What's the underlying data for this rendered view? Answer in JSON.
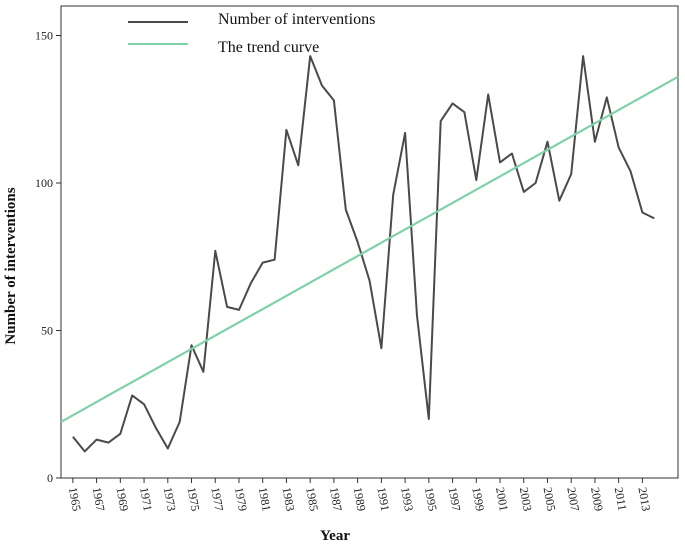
{
  "chart_data": {
    "type": "line",
    "xlabel": "Year",
    "ylabel": "Number of interventions",
    "xlim": [
      1964,
      2016
    ],
    "ylim": [
      0,
      160
    ],
    "yticks": [
      0,
      50,
      100,
      150
    ],
    "xticks": [
      "1965",
      "1967",
      "1969",
      "1971",
      "1973",
      "1975",
      "1977",
      "1979",
      "1981",
      "1983",
      "1985",
      "1987",
      "1989",
      "1991",
      "1993",
      "1995",
      "1997",
      "1999",
      "2001",
      "2003",
      "2005",
      "2007",
      "2009",
      "2011",
      "2013"
    ],
    "grid": false,
    "legend_position": "top-left",
    "series": [
      {
        "name": "Number of interventions",
        "color": "#4a4a4a",
        "x": [
          1965,
          1966,
          1967,
          1968,
          1969,
          1970,
          1971,
          1972,
          1973,
          1974,
          1975,
          1976,
          1977,
          1978,
          1979,
          1980,
          1981,
          1982,
          1983,
          1984,
          1985,
          1986,
          1987,
          1988,
          1989,
          1990,
          1991,
          1992,
          1993,
          1994,
          1995,
          1996,
          1997,
          1998,
          1999,
          2000,
          2001,
          2002,
          2003,
          2004,
          2005,
          2006,
          2007,
          2008,
          2009,
          2010,
          2011,
          2012,
          2013,
          2014,
          2015
        ],
        "y": [
          14,
          9,
          13,
          12,
          15,
          28,
          25,
          17,
          10,
          19,
          45,
          36,
          77,
          58,
          57,
          66,
          73,
          74,
          118,
          106,
          143,
          133,
          128,
          91,
          80,
          67,
          44,
          96,
          117,
          55,
          20,
          121,
          127,
          124,
          101,
          130,
          107,
          110,
          97,
          100,
          114,
          94,
          103,
          143,
          114,
          129,
          112,
          104,
          90,
          88,
          null
        ]
      },
      {
        "name": "The trend curve",
        "color": "#7fd1a8",
        "x": [
          1964,
          2016
        ],
        "y": [
          19,
          136
        ]
      }
    ]
  }
}
